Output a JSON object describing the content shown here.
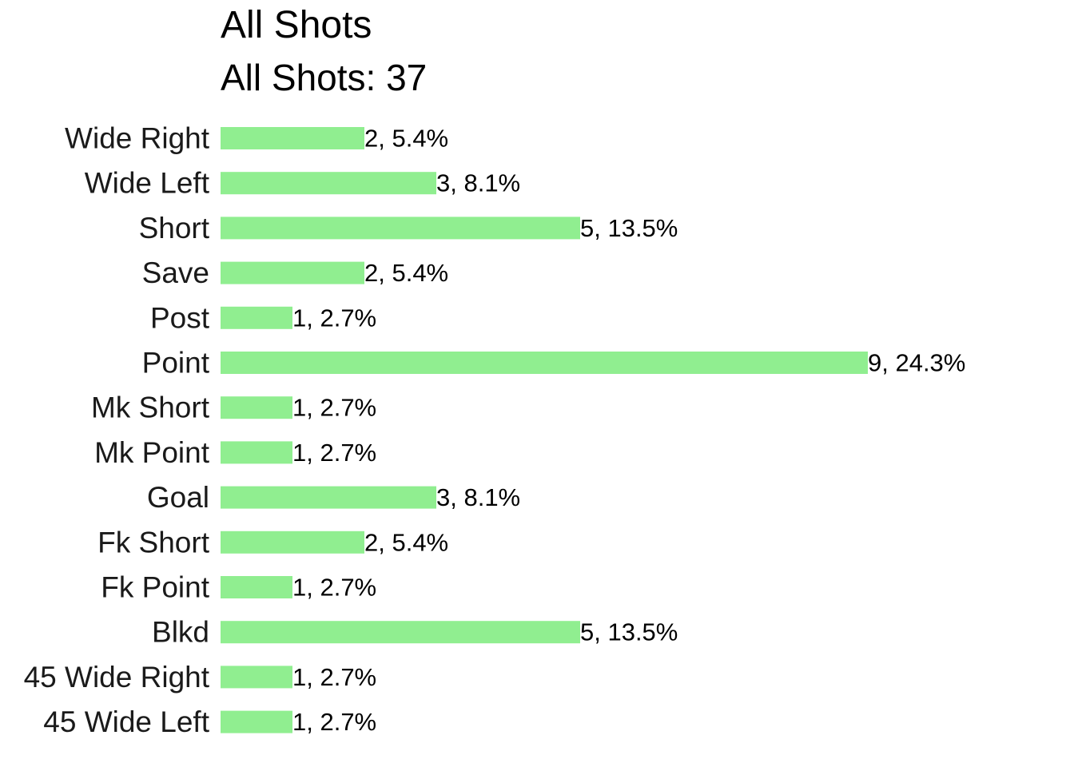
{
  "chart_data": {
    "type": "bar",
    "orientation": "horizontal",
    "title": "All Shots",
    "subtitle": "All Shots: 37",
    "categories": [
      "Wide Right",
      "Wide Left",
      "Short",
      "Save",
      "Post",
      "Point",
      "Mk Short",
      "Mk Point",
      "Goal",
      "Fk Short",
      "Fk Point",
      "Blkd",
      "45 Wide Right",
      "45 Wide Left"
    ],
    "values": [
      2,
      3,
      5,
      2,
      1,
      9,
      1,
      1,
      3,
      2,
      1,
      5,
      1,
      1
    ],
    "data_labels": [
      "2, 5.4%",
      "3, 8.1%",
      "5, 13.5%",
      "2, 5.4%",
      "1, 2.7%",
      "9, 24.3%",
      "1, 2.7%",
      "1, 2.7%",
      "3, 8.1%",
      "2, 5.4%",
      "1, 2.7%",
      "5, 13.5%",
      "1, 2.7%",
      "1, 2.7%"
    ],
    "xlim": [
      0,
      9
    ],
    "grid": false,
    "bar_color": "#90EE90"
  }
}
